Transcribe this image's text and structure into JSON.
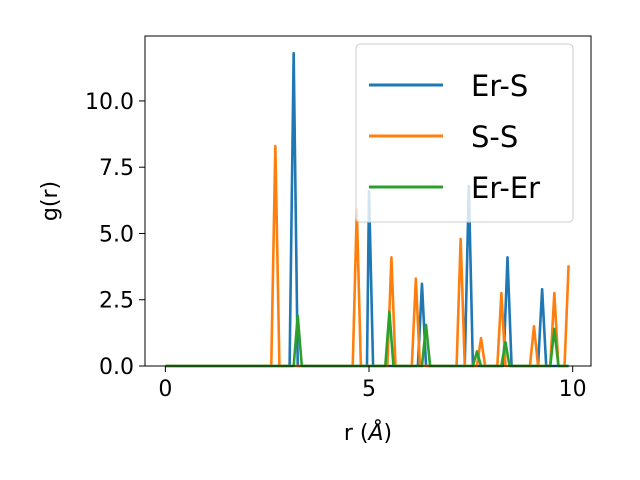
{
  "chart_data": {
    "type": "line",
    "xlabel_main": "r (",
    "xlabel_unit": "Å",
    "xlabel_close": ")",
    "ylabel": "g(r)",
    "xlim": [
      -0.5,
      10.45
    ],
    "ylim": [
      0,
      12.45
    ],
    "x_ticks": [
      0,
      5,
      10
    ],
    "x_tick_labels": [
      "0",
      "5",
      "10"
    ],
    "y_ticks": [
      0,
      2.5,
      5,
      7.5,
      10
    ],
    "y_tick_labels": [
      "0.0",
      "2.5",
      "5.0",
      "7.5",
      "10.0"
    ],
    "legend_position": "upper right",
    "colors": [
      "#1f77b4",
      "#ff7f0e",
      "#2ca02c"
    ],
    "series": [
      {
        "name": "Er-S",
        "color": "#1f77b4",
        "x": [
          0,
          3.05,
          3.15,
          3.25,
          4.95,
          5.0,
          5.1,
          6.2,
          6.3,
          6.4,
          7.35,
          7.45,
          7.55,
          8.3,
          8.4,
          8.5,
          9.15,
          9.25,
          9.35,
          9.9
        ],
        "y": [
          0,
          0,
          11.8,
          0,
          0,
          6.6,
          0,
          0,
          3.1,
          0,
          0,
          6.8,
          0,
          0,
          4.1,
          0,
          0,
          2.9,
          0,
          0
        ]
      },
      {
        "name": "S-S",
        "color": "#ff7f0e",
        "x": [
          0,
          2.6,
          2.7,
          2.8,
          4.6,
          4.7,
          4.8,
          5.45,
          5.55,
          5.65,
          6.05,
          6.15,
          6.25,
          7.15,
          7.25,
          7.35,
          7.65,
          7.75,
          7.85,
          8.15,
          8.25,
          8.35,
          8.95,
          9.05,
          9.15,
          9.45,
          9.55,
          9.65,
          9.8,
          9.9
        ],
        "y": [
          0,
          0,
          8.3,
          0,
          0,
          5.9,
          0,
          0,
          4.1,
          0,
          0,
          3.3,
          0,
          0,
          4.8,
          0,
          0,
          1.05,
          0,
          0,
          2.75,
          0,
          0,
          1.5,
          0,
          0,
          2.75,
          0,
          0,
          3.8
        ]
      },
      {
        "name": "Er-Er",
        "color": "#2ca02c",
        "x": [
          0,
          3.15,
          3.25,
          3.35,
          5.4,
          5.5,
          5.6,
          6.3,
          6.4,
          6.5,
          7.55,
          7.65,
          7.75,
          8.25,
          8.35,
          8.45,
          9.45,
          9.55,
          9.65,
          9.9
        ],
        "y": [
          0,
          0,
          1.9,
          0,
          0,
          2.05,
          0,
          0,
          1.55,
          0,
          0,
          0.55,
          0,
          0,
          0.9,
          0,
          0,
          1.4,
          0,
          0
        ]
      }
    ]
  }
}
